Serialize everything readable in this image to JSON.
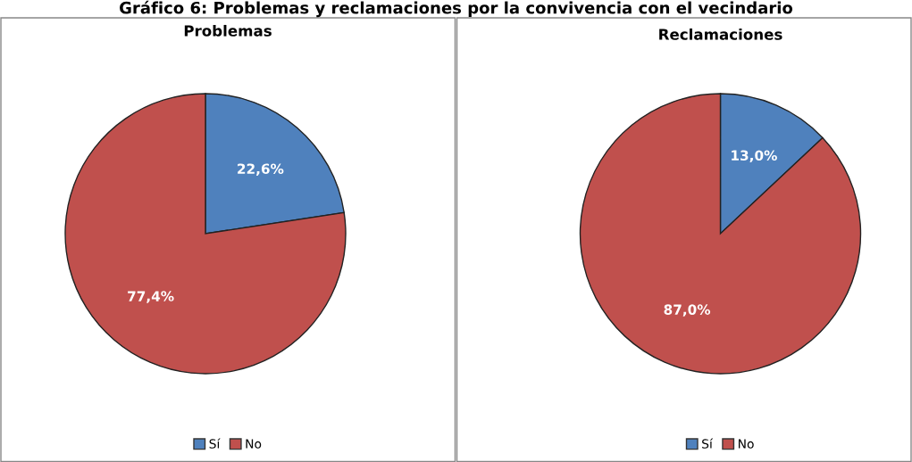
{
  "chart_data": [
    {
      "type": "pie",
      "title": "Problemas",
      "annotations": [
        "Gráfico 6: Problemas y reclamaciones por la convivencia con el vecindario"
      ],
      "categories": [
        "Sí",
        "No"
      ],
      "values": [
        22.6,
        77.4
      ],
      "colors": [
        "#4f81bd",
        "#c0504d"
      ],
      "value_labels": [
        "22,6%",
        "77,4%"
      ],
      "legend": "bottom"
    },
    {
      "type": "pie",
      "title": "Reclamaciones",
      "categories": [
        "Sí",
        "No"
      ],
      "values": [
        13.0,
        87.0
      ],
      "colors": [
        "#4f81bd",
        "#c0504d"
      ],
      "value_labels": [
        "13,0%",
        "87,0%"
      ],
      "legend": "bottom"
    }
  ]
}
